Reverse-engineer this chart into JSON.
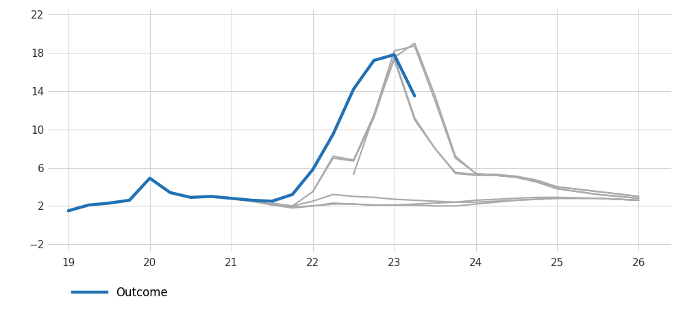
{
  "outcome": {
    "x": [
      19.0,
      19.25,
      19.5,
      19.75,
      20.0,
      20.25,
      20.5,
      20.75,
      21.0,
      21.25,
      21.5,
      21.75,
      22.0,
      22.25,
      22.5,
      22.75,
      23.0,
      23.25
    ],
    "y": [
      1.5,
      2.1,
      2.3,
      2.6,
      4.9,
      3.4,
      2.9,
      3.0,
      2.8,
      2.6,
      2.5,
      3.2,
      5.8,
      9.5,
      14.2,
      17.2,
      17.8,
      13.5
    ]
  },
  "forecasts": [
    {
      "x": [
        20.75,
        21.0,
        21.25,
        21.5,
        21.75,
        22.0,
        22.25,
        22.5,
        22.75,
        23.0,
        23.25,
        23.5,
        23.75,
        24.0,
        24.25,
        24.5,
        24.75,
        25.0,
        25.5,
        26.0
      ],
      "y": [
        3.0,
        2.8,
        2.5,
        2.2,
        1.9,
        2.0,
        2.2,
        2.2,
        2.1,
        2.1,
        2.2,
        2.3,
        2.4,
        2.6,
        2.7,
        2.8,
        2.9,
        2.9,
        2.8,
        2.6
      ]
    },
    {
      "x": [
        21.0,
        21.25,
        21.5,
        21.75,
        22.0,
        22.25,
        22.5,
        22.75,
        23.0,
        23.25,
        23.5,
        23.75,
        24.0,
        24.25,
        24.5,
        24.75,
        25.0,
        25.5,
        26.0
      ],
      "y": [
        2.8,
        2.5,
        2.1,
        1.8,
        2.0,
        2.3,
        2.2,
        2.1,
        2.1,
        2.1,
        2.0,
        2.0,
        2.2,
        2.4,
        2.6,
        2.7,
        2.8,
        2.8,
        2.6
      ]
    },
    {
      "x": [
        21.5,
        21.75,
        22.0,
        22.25,
        22.5,
        22.75,
        23.0,
        23.25,
        23.5,
        23.75,
        24.0,
        24.25,
        24.5,
        24.75,
        25.0,
        25.5,
        26.0
      ],
      "y": [
        2.3,
        2.0,
        2.5,
        3.2,
        3.0,
        2.9,
        2.7,
        2.6,
        2.5,
        2.4,
        2.4,
        2.5,
        2.6,
        2.7,
        2.8,
        2.8,
        2.6
      ]
    },
    {
      "x": [
        21.75,
        22.0,
        22.25,
        22.5,
        22.75,
        23.0,
        23.25,
        23.5,
        23.75,
        24.0,
        24.25,
        24.5,
        24.75,
        25.0,
        25.5,
        26.0
      ],
      "y": [
        2.0,
        3.5,
        7.0,
        6.7,
        11.2,
        17.5,
        11.2,
        8.0,
        5.4,
        5.2,
        5.2,
        5.0,
        4.6,
        4.0,
        3.5,
        3.0
      ]
    },
    {
      "x": [
        22.0,
        22.25,
        22.5,
        22.75,
        23.0,
        23.25,
        23.5,
        23.75,
        24.0,
        24.25,
        24.5,
        24.75,
        25.0,
        25.5,
        26.0
      ],
      "y": [
        3.5,
        7.2,
        6.8,
        11.5,
        17.3,
        11.0,
        8.0,
        5.5,
        5.3,
        5.3,
        5.1,
        4.7,
        4.0,
        3.5,
        3.0
      ]
    },
    {
      "x": [
        22.5,
        22.75,
        23.0,
        23.25,
        23.5,
        23.75,
        24.0,
        24.25,
        24.5,
        24.75,
        25.0,
        25.5,
        26.0
      ],
      "y": [
        5.3,
        11.5,
        18.2,
        18.7,
        13.0,
        7.0,
        5.4,
        5.2,
        5.0,
        4.5,
        3.8,
        3.2,
        2.8
      ]
    },
    {
      "x": [
        22.75,
        23.0,
        23.25,
        23.5,
        23.75,
        24.0,
        24.25,
        24.5,
        24.75,
        25.0,
        25.5,
        26.0
      ],
      "y": [
        11.5,
        17.5,
        19.0,
        13.5,
        7.2,
        5.4,
        5.2,
        5.0,
        4.5,
        3.8,
        3.2,
        2.8
      ]
    }
  ],
  "outcome_color": "#2171b5",
  "forecast_color": "#AAAAAA",
  "outcome_linewidth": 3.2,
  "forecast_linewidth": 1.6,
  "xlim": [
    18.75,
    26.4
  ],
  "ylim": [
    -2.8,
    22.5
  ],
  "xticks": [
    19,
    20,
    21,
    22,
    23,
    24,
    25,
    26
  ],
  "yticks": [
    -2,
    2,
    6,
    10,
    14,
    18,
    22
  ],
  "grid_color": "#D0D0D0",
  "background_color": "#FFFFFF",
  "legend_label": "Outcome",
  "figsize": [
    10.0,
    4.71
  ],
  "dpi": 100
}
